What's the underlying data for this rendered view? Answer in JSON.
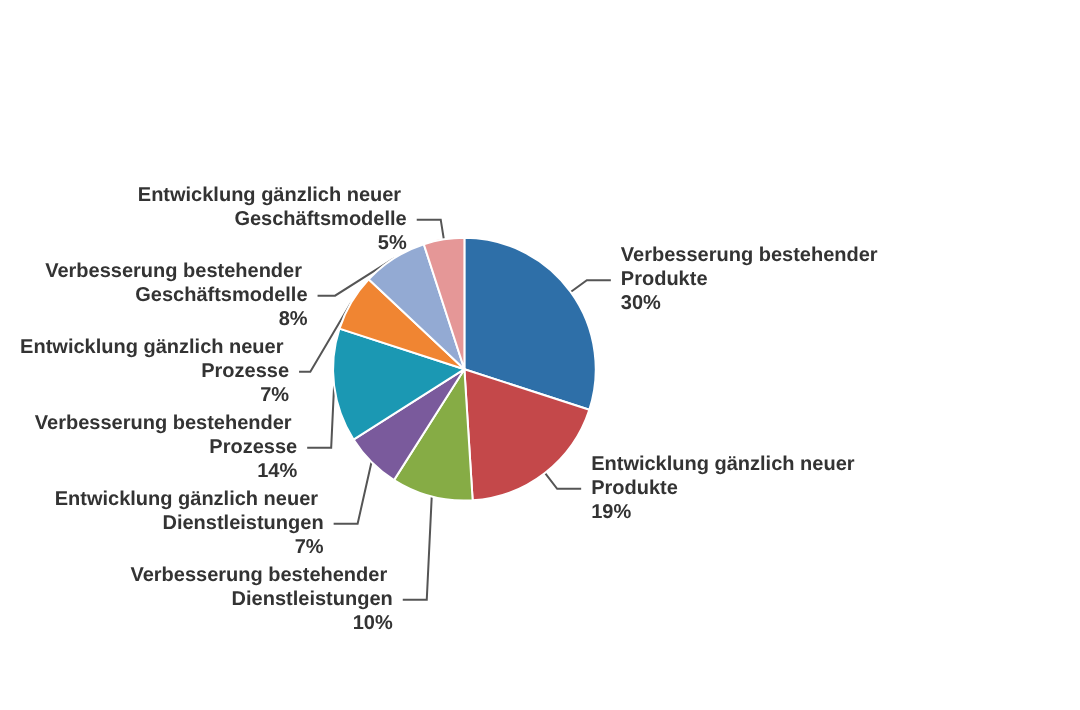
{
  "chart_data": {
    "type": "pie",
    "categories": [
      "Verbesserung bestehender Produkte",
      "Entwicklung gänzlich neuer Produkte",
      "Verbesserung bestehender Dienstleistungen",
      "Entwicklung gänzlich neuer Dienstleistungen",
      "Verbesserung bestehender Prozesse",
      "Entwicklung gänzlich neuer Prozesse",
      "Verbesserung bestehender Geschäftsmodelle",
      "Entwicklung gänzlich neuer Geschäftsmodelle"
    ],
    "values": [
      30,
      19,
      10,
      7,
      14,
      7,
      8,
      5
    ],
    "value_labels": [
      "30%",
      "19%",
      "10%",
      "7%",
      "14%",
      "7%",
      "8%",
      "5%"
    ],
    "colors": [
      "#2e6fa8",
      "#c4484a",
      "#86ac45",
      "#7a5a9c",
      "#1b98b3",
      "#f08532",
      "#93aad3",
      "#e59797"
    ]
  }
}
